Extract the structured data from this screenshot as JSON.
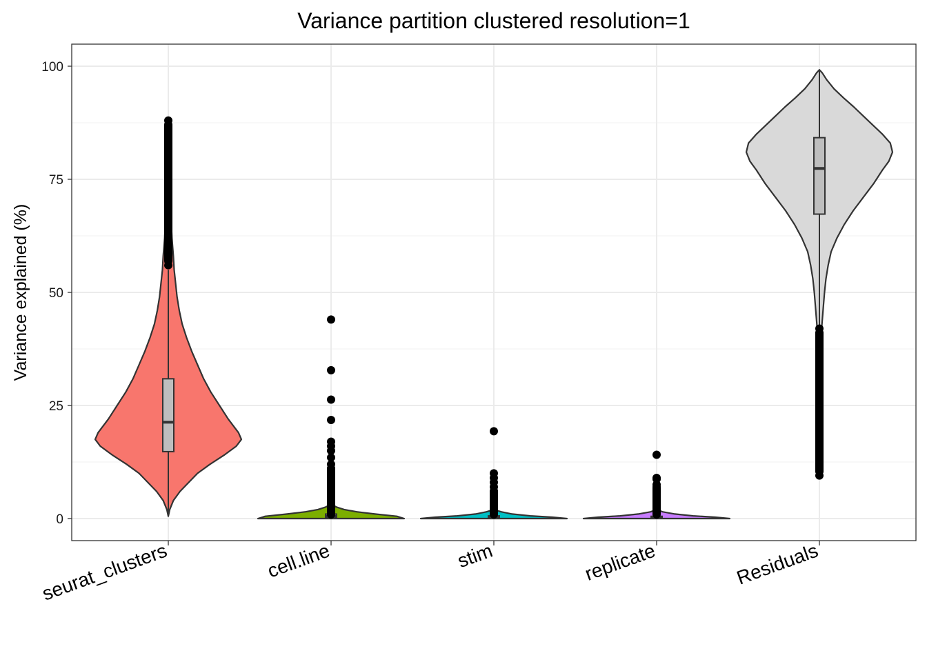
{
  "chart_data": {
    "type": "violin",
    "title": "Variance partition clustered resolution=1",
    "xlabel": "",
    "ylabel": "Variance explained (%)",
    "categories": [
      "seurat_clusters",
      "cell.line",
      "stim",
      "replicate",
      "Residuals"
    ],
    "ylim": [
      -5,
      105
    ],
    "yticks": [
      0,
      25,
      50,
      75,
      100
    ],
    "grid": true,
    "legend": "none",
    "colors": [
      "#F8766D",
      "#7CAE00",
      "#00BFC4",
      "#C77CFF",
      "#D9D9D9"
    ],
    "box_color": "#BEBEBE",
    "series": [
      {
        "category": "seurat_clusters",
        "min": 0.5,
        "q1": 14.8,
        "median": 21.3,
        "q3": 30.9,
        "whisker_high": 55,
        "max": 88,
        "density": [
          [
            0.5,
            0.0
          ],
          [
            2,
            0.02
          ],
          [
            4,
            0.07
          ],
          [
            6,
            0.16
          ],
          [
            8,
            0.28
          ],
          [
            10,
            0.4
          ],
          [
            12,
            0.57
          ],
          [
            14,
            0.76
          ],
          [
            16,
            0.93
          ],
          [
            17.5,
            1.0
          ],
          [
            19,
            0.96
          ],
          [
            22,
            0.82
          ],
          [
            25,
            0.7
          ],
          [
            28,
            0.58
          ],
          [
            31,
            0.48
          ],
          [
            34,
            0.4
          ],
          [
            37,
            0.32
          ],
          [
            40,
            0.25
          ],
          [
            43,
            0.19
          ],
          [
            46,
            0.15
          ],
          [
            49,
            0.12
          ],
          [
            52,
            0.1
          ],
          [
            55,
            0.08
          ],
          [
            58,
            0.07
          ],
          [
            62,
            0.05
          ],
          [
            66,
            0.04
          ],
          [
            70,
            0.035
          ],
          [
            75,
            0.03
          ],
          [
            80,
            0.025
          ],
          [
            84,
            0.02
          ],
          [
            88,
            0.0
          ]
        ],
        "outliers": [
          56,
          58,
          60,
          62,
          64,
          66,
          68,
          70,
          72,
          74,
          75,
          76,
          78,
          80,
          81,
          82,
          83,
          84,
          85,
          86,
          88
        ]
      },
      {
        "category": "cell.line",
        "min": 0,
        "q1": 0.1,
        "median": 0.5,
        "q3": 1.0,
        "whisker_high": 2.5,
        "max": 44,
        "density": [
          [
            0,
            1.0
          ],
          [
            0.5,
            0.9
          ],
          [
            1,
            0.6
          ],
          [
            1.5,
            0.35
          ],
          [
            2,
            0.18
          ],
          [
            2.5,
            0.08
          ],
          [
            3,
            0.02
          ],
          [
            3.5,
            0.0
          ]
        ],
        "outliers": [
          3,
          4,
          5,
          6,
          7,
          8,
          9,
          10,
          11,
          12,
          13.5,
          15,
          16,
          17,
          21.8,
          26.3,
          32.8,
          44
        ]
      },
      {
        "category": "stim",
        "min": 0,
        "q1": 0.05,
        "median": 0.2,
        "q3": 0.6,
        "whisker_high": 1.2,
        "max": 19.3,
        "density": [
          [
            0,
            1.0
          ],
          [
            0.3,
            0.8
          ],
          [
            0.6,
            0.5
          ],
          [
            1,
            0.25
          ],
          [
            1.5,
            0.1
          ],
          [
            2,
            0.0
          ]
        ],
        "outliers": [
          1.5,
          2,
          2.5,
          3,
          3.5,
          4,
          4.5,
          5,
          6,
          7,
          8,
          9,
          10,
          19.3
        ]
      },
      {
        "category": "replicate",
        "min": 0,
        "q1": 0.05,
        "median": 0.2,
        "q3": 0.5,
        "whisker_high": 1.0,
        "max": 14.1,
        "density": [
          [
            0,
            1.0
          ],
          [
            0.3,
            0.8
          ],
          [
            0.6,
            0.5
          ],
          [
            1,
            0.25
          ],
          [
            1.5,
            0.08
          ],
          [
            2,
            0.0
          ]
        ],
        "outliers": [
          1.2,
          1.6,
          2,
          2.5,
          3,
          3.5,
          4,
          4.5,
          5,
          5.5,
          6,
          6.5,
          7,
          7.5,
          8.7,
          9,
          14.1
        ]
      },
      {
        "category": "Residuals",
        "min": 9.5,
        "q1": 67.3,
        "median": 77.4,
        "q3": 84.2,
        "whisker_high": 99.2,
        "whisker_low": 42,
        "max": 99.2,
        "density": [
          [
            9.5,
            0.0
          ],
          [
            12,
            0.005
          ],
          [
            20,
            0.01
          ],
          [
            30,
            0.015
          ],
          [
            38,
            0.02
          ],
          [
            42,
            0.03
          ],
          [
            46,
            0.05
          ],
          [
            50,
            0.07
          ],
          [
            53,
            0.09
          ],
          [
            56,
            0.12
          ],
          [
            59,
            0.16
          ],
          [
            62,
            0.24
          ],
          [
            65,
            0.34
          ],
          [
            68,
            0.46
          ],
          [
            71,
            0.6
          ],
          [
            74,
            0.74
          ],
          [
            77,
            0.86
          ],
          [
            79,
            0.95
          ],
          [
            81,
            1.0
          ],
          [
            83,
            0.97
          ],
          [
            85,
            0.86
          ],
          [
            87,
            0.73
          ],
          [
            89,
            0.6
          ],
          [
            91,
            0.47
          ],
          [
            93,
            0.33
          ],
          [
            95,
            0.2
          ],
          [
            97,
            0.1
          ],
          [
            98.5,
            0.04
          ],
          [
            99.2,
            0.0
          ]
        ],
        "outliers": [
          9.5,
          10.5,
          11.5,
          13,
          15,
          17,
          19,
          21,
          23,
          25,
          27,
          29,
          31,
          33,
          35,
          37,
          39,
          41,
          42
        ]
      }
    ]
  }
}
